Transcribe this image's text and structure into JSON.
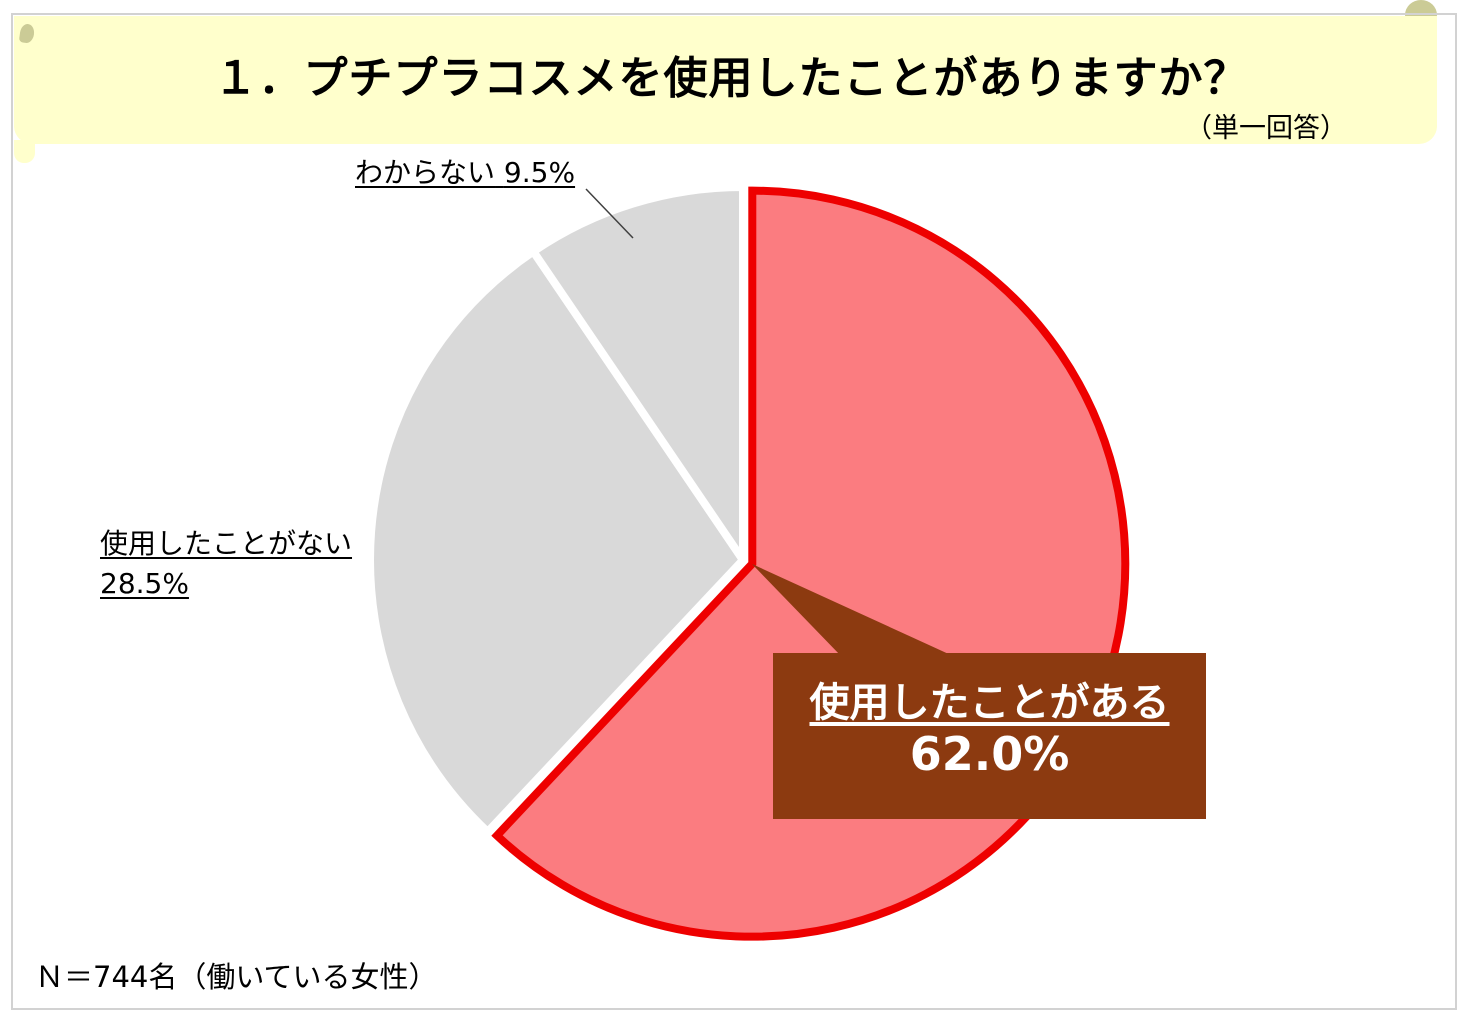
{
  "header": {
    "title": "１．プチプラコスメを使用したことがありますか？",
    "answer_type": "（単一回答）"
  },
  "footer": {
    "note": "Ｎ＝744名（働いている女性）"
  },
  "chart_data": {
    "type": "pie",
    "title": "１．プチプラコスメを使用したことがありますか？",
    "subtitle": "（単一回答）",
    "sample_note": "Ｎ＝744名（働いている女性）",
    "start_angle_deg": 0,
    "direction": "clockwise",
    "total": 100,
    "legend_position": "none",
    "slices": [
      {
        "label": "使用したことがある",
        "value": 62.0,
        "display": "62.0%",
        "fill": "#FB7C80",
        "stroke": "#EE0000",
        "exploded": true,
        "callout": true
      },
      {
        "label": "使用したことがない",
        "value": 28.5,
        "display": "28.5%",
        "fill": "#D9D9D9",
        "stroke": "#FFFFFF",
        "exploded": false,
        "callout": false
      },
      {
        "label": "わからない",
        "value": 9.5,
        "display": "9.5%",
        "fill": "#D9D9D9",
        "stroke": "#FFFFFF",
        "exploded": false,
        "callout": false
      }
    ]
  },
  "colors": {
    "page_bg": "#FFFFFF",
    "frame_border": "#D2D2D2",
    "band_bg": "#FFFFCC",
    "deco": "#CBCB96",
    "callout_bg": "#8C3A10",
    "callout_text": "#FFFFFF",
    "leader_line": "#404040",
    "text": "#000000"
  }
}
